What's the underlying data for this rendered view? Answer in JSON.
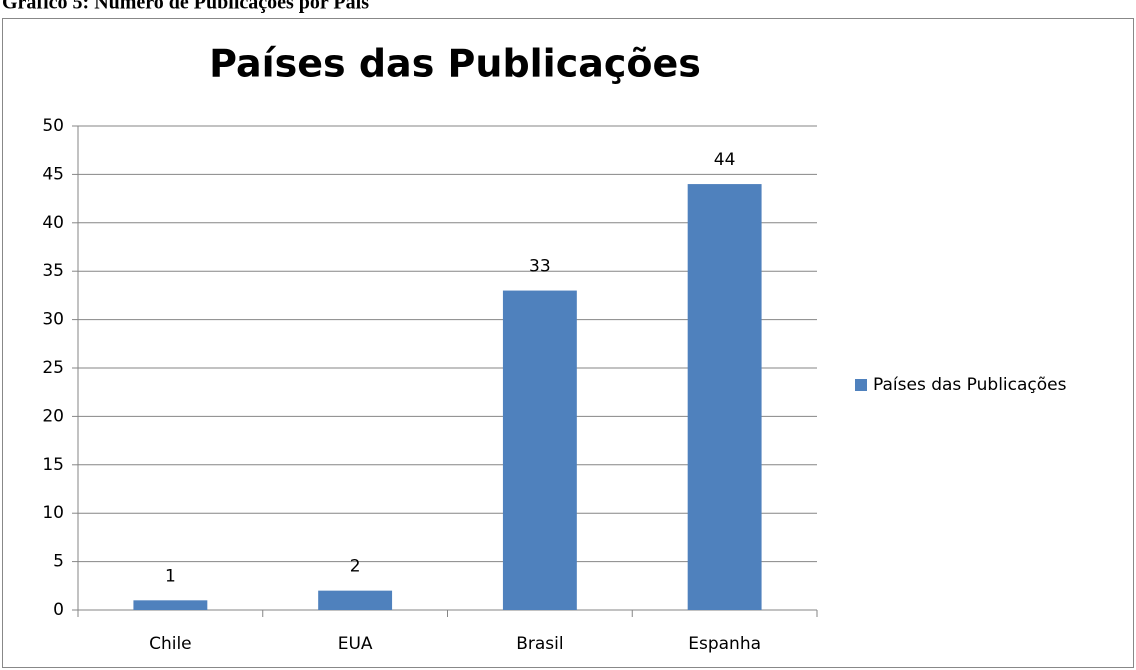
{
  "chart_data": {
    "type": "bar",
    "caption": "Gráfico 5: Número de Publicações por País",
    "title": "Países das Publicações",
    "categories": [
      "Chile",
      "EUA",
      "Brasil",
      "Espanha"
    ],
    "series": [
      {
        "name": "Países das Publicações",
        "color": "#4f81bd",
        "values": [
          1,
          2,
          33,
          44
        ]
      }
    ],
    "ylim": [
      0,
      50
    ],
    "yticks": [
      0,
      5,
      10,
      15,
      20,
      25,
      30,
      35,
      40,
      45,
      50
    ],
    "grid": true,
    "legend": "right"
  }
}
